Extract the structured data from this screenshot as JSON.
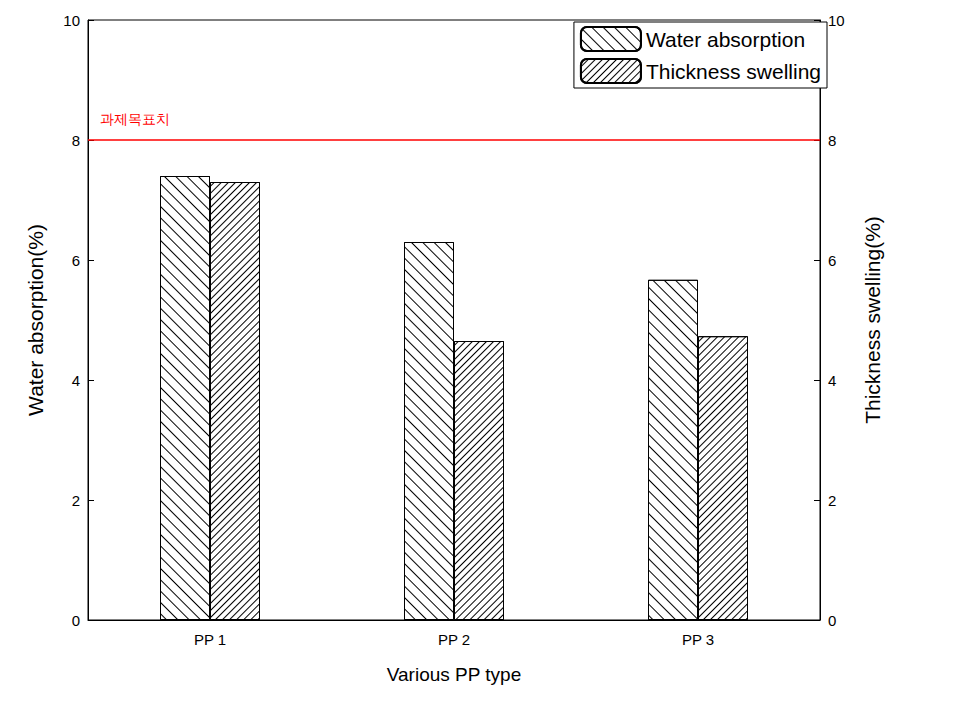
{
  "chart_data": {
    "type": "bar",
    "x_label": "Various PP type",
    "y_label": "Water absorption(%)",
    "y2_label": "Thickness swelling(%)",
    "categories": [
      "PP 1",
      "PP 2",
      "PP 3"
    ],
    "series": [
      {
        "name": "Water absorption",
        "color": "#000000",
        "values": [
          7.4,
          6.3,
          5.67
        ]
      },
      {
        "name": "Thickness swelling",
        "color": "#000000",
        "values": [
          7.3,
          4.65,
          4.73
        ],
        "axis": "y2"
      }
    ],
    "ylim": [
      0,
      10
    ],
    "yticks": [
      0,
      2,
      4,
      6,
      8,
      10
    ],
    "y2lim": [
      0,
      10
    ],
    "y2ticks": [
      0,
      2,
      4,
      6,
      8,
      10
    ],
    "annotations": [
      {
        "text": "과제목표치",
        "y": 8,
        "color": "#ff0000"
      }
    ],
    "legend": "upper right",
    "grid": false
  }
}
